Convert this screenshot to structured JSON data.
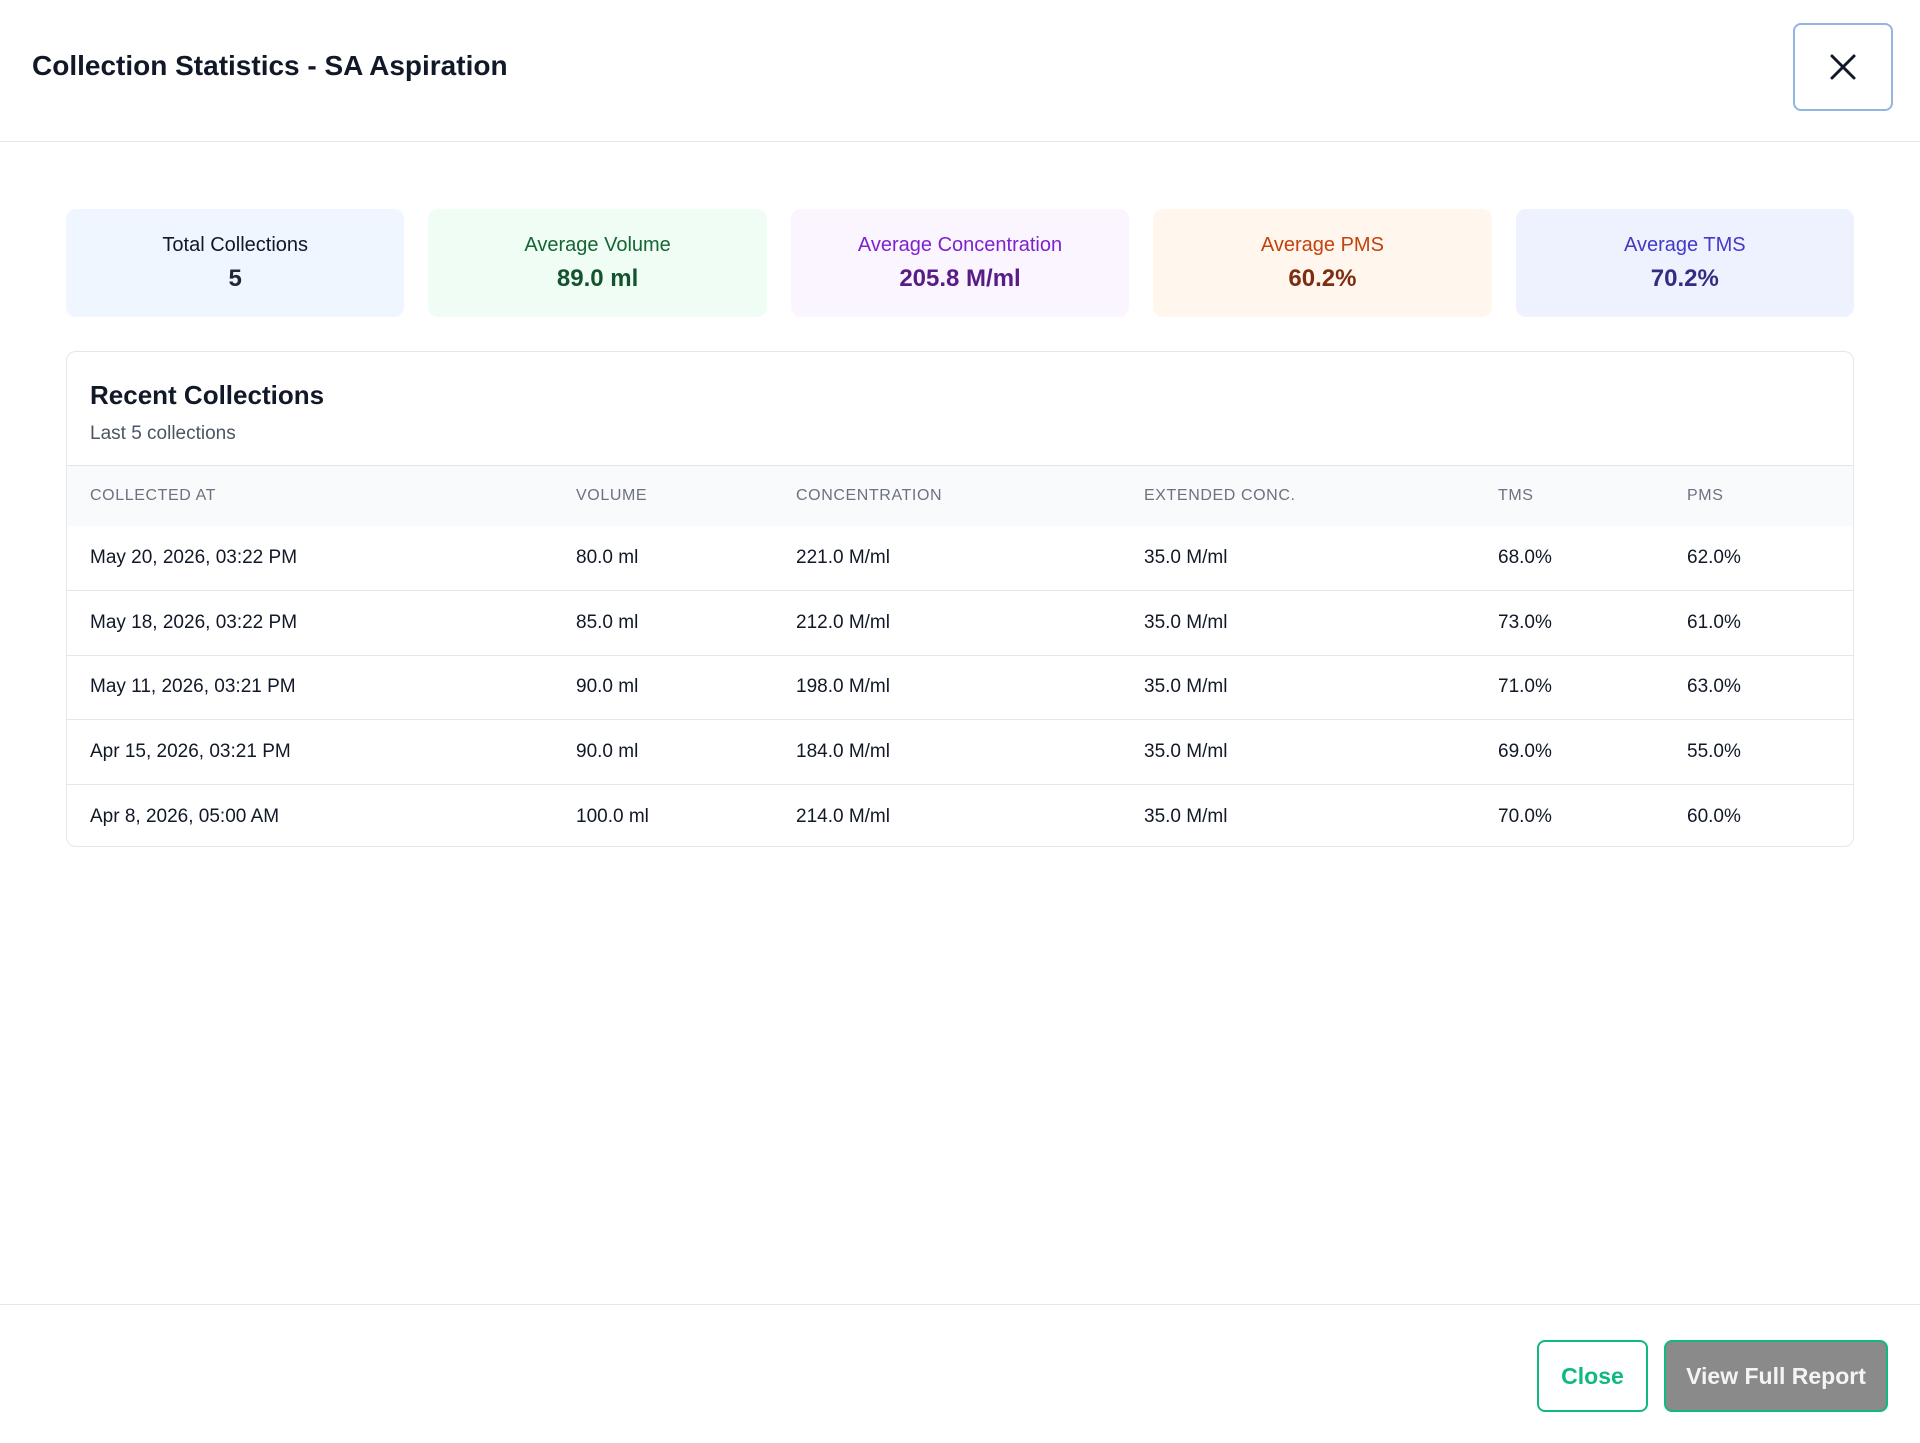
{
  "modal": {
    "title": "Collection Statistics - SA Aspiration",
    "close_icon": "x-icon"
  },
  "stats": [
    {
      "label": "Total Collections",
      "value": "5",
      "bg": "#eff6ff",
      "label_color": "#111827",
      "value_color": "#1f2937"
    },
    {
      "label": "Average Volume",
      "value": "89.0 ml",
      "bg": "#f0fdf4",
      "label_color": "#166534",
      "value_color": "#14532d"
    },
    {
      "label": "Average Concentration",
      "value": "205.8 M/ml",
      "bg": "#faf5ff",
      "label_color": "#7e22ce",
      "value_color": "#581c87"
    },
    {
      "label": "Average PMS",
      "value": "60.2%",
      "bg": "#fff7ed",
      "label_color": "#c2410c",
      "value_color": "#7c2d12"
    },
    {
      "label": "Average TMS",
      "value": "70.2%",
      "bg": "#eef2ff",
      "label_color": "#4338ca",
      "value_color": "#312e81"
    }
  ],
  "recent": {
    "title": "Recent Collections",
    "subtitle": "Last 5 collections",
    "columns": [
      "COLLECTED AT",
      "VOLUME",
      "CONCENTRATION",
      "EXTENDED CONC.",
      "TMS",
      "PMS"
    ],
    "rows": [
      [
        "May 20, 2026, 03:22 PM",
        "80.0 ml",
        "221.0 M/ml",
        "35.0 M/ml",
        "68.0%",
        "62.0%"
      ],
      [
        "May 18, 2026, 03:22 PM",
        "85.0 ml",
        "212.0 M/ml",
        "35.0 M/ml",
        "73.0%",
        "61.0%"
      ],
      [
        "May 11, 2026, 03:21 PM",
        "90.0 ml",
        "198.0 M/ml",
        "35.0 M/ml",
        "71.0%",
        "63.0%"
      ],
      [
        "Apr 15, 2026, 03:21 PM",
        "90.0 ml",
        "184.0 M/ml",
        "35.0 M/ml",
        "69.0%",
        "55.0%"
      ],
      [
        "Apr 8, 2026, 05:00 AM",
        "100.0 ml",
        "214.0 M/ml",
        "35.0 M/ml",
        "70.0%",
        "60.0%"
      ]
    ]
  },
  "footer": {
    "close_label": "Close",
    "report_label": "View Full Report"
  },
  "colors": {
    "accent": "#10b981",
    "report_button_bg": "#8a8a8a"
  }
}
